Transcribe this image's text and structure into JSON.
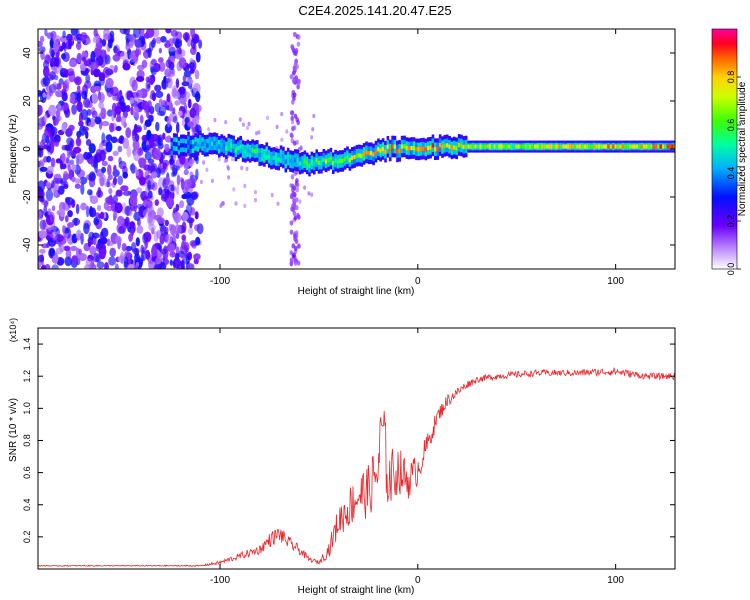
{
  "figure": {
    "title": "C2E4.2025.141.20.47.E25"
  },
  "chart_data": [
    {
      "type": "heatmap",
      "title": "C2E4.2025.141.20.47.E25",
      "xlabel": "Height of straight line (km)",
      "ylabel": "Frequency (Hz)",
      "xlim": [
        -192,
        130
      ],
      "ylim": [
        -50,
        50
      ],
      "xticks": [
        -100,
        0,
        100
      ],
      "yticks": [
        -40,
        -20,
        0,
        20,
        40
      ],
      "xtick_labels": [
        "-100",
        "0",
        "100"
      ],
      "ytick_labels": [
        "-40",
        "-20",
        "0",
        "20",
        "40"
      ],
      "colorbar": {
        "label": "Normalized spectral amplitude",
        "range": [
          0,
          1
        ],
        "ticks": [
          0.0,
          0.2,
          0.4,
          0.6,
          0.8
        ],
        "tick_labels": [
          "0.0",
          "0.2",
          "0.4",
          "0.6",
          "0.8"
        ],
        "colormap": [
          "#ffffff",
          "#8a00ff",
          "#1010ff",
          "#00c0ff",
          "#00ff60",
          "#80ff00",
          "#ffff00",
          "#ff8000",
          "#ff0000",
          "#ff00a0"
        ]
      },
      "noise_region_x": [
        -192,
        -110
      ],
      "spike_band_x": -62,
      "ridge": {
        "x": [
          -125,
          -115,
          -105,
          -95,
          -85,
          -75,
          -65,
          -55,
          -45,
          -35,
          -25,
          -15,
          -5,
          5,
          15,
          25,
          40,
          60,
          80,
          100,
          130
        ],
        "y": [
          1,
          2,
          2,
          1,
          -1,
          -3,
          -5,
          -6,
          -5,
          -4,
          -2,
          0,
          0,
          1,
          1,
          1,
          1,
          1,
          1,
          1,
          1
        ],
        "amplitude": [
          0.3,
          0.4,
          0.45,
          0.5,
          0.55,
          0.5,
          0.45,
          0.6,
          0.65,
          0.7,
          0.75,
          0.8,
          0.8,
          0.85,
          0.75,
          0.7,
          0.65,
          0.7,
          0.75,
          0.8,
          0.85
        ]
      }
    },
    {
      "type": "line",
      "xlabel": "Height of straight line (km)",
      "ylabel": "SNR (10 * v/v)",
      "scale_label": "(x10⁴)",
      "xlim": [
        -192,
        130
      ],
      "ylim": [
        0,
        1.5
      ],
      "xticks": [
        -100,
        0,
        100
      ],
      "yticks": [
        0.2,
        0.4,
        0.6,
        0.8,
        1.0,
        1.2,
        1.4
      ],
      "xtick_labels": [
        "-100",
        "0",
        "100"
      ],
      "ytick_labels": [
        "0.2",
        "0.4",
        "0.6",
        "0.8",
        "1.0",
        "1.2",
        "1.4"
      ],
      "series": [
        {
          "name": "SNR",
          "color": "#e8262b",
          "x": [
            -192,
            -160,
            -130,
            -110,
            -100,
            -90,
            -80,
            -75,
            -70,
            -65,
            -60,
            -55,
            -50,
            -45,
            -40,
            -35,
            -30,
            -25,
            -20,
            -18,
            -15,
            -10,
            -5,
            0,
            5,
            10,
            15,
            20,
            25,
            30,
            40,
            60,
            80,
            100,
            115,
            130
          ],
          "y": [
            0.02,
            0.02,
            0.02,
            0.02,
            0.04,
            0.08,
            0.12,
            0.18,
            0.22,
            0.16,
            0.12,
            0.06,
            0.04,
            0.12,
            0.3,
            0.38,
            0.46,
            0.48,
            0.62,
            0.9,
            0.55,
            0.62,
            0.55,
            0.62,
            0.78,
            0.95,
            1.05,
            1.1,
            1.15,
            1.18,
            1.2,
            1.22,
            1.22,
            1.23,
            1.2,
            1.2
          ],
          "jitter": [
            0.003,
            0.003,
            0.003,
            0.004,
            0.012,
            0.02,
            0.03,
            0.045,
            0.05,
            0.04,
            0.03,
            0.015,
            0.012,
            0.05,
            0.1,
            0.13,
            0.15,
            0.17,
            0.2,
            0.25,
            0.2,
            0.15,
            0.12,
            0.1,
            0.07,
            0.05,
            0.04,
            0.03,
            0.025,
            0.02,
            0.02,
            0.02,
            0.02,
            0.025,
            0.02,
            0.02
          ]
        }
      ]
    }
  ]
}
